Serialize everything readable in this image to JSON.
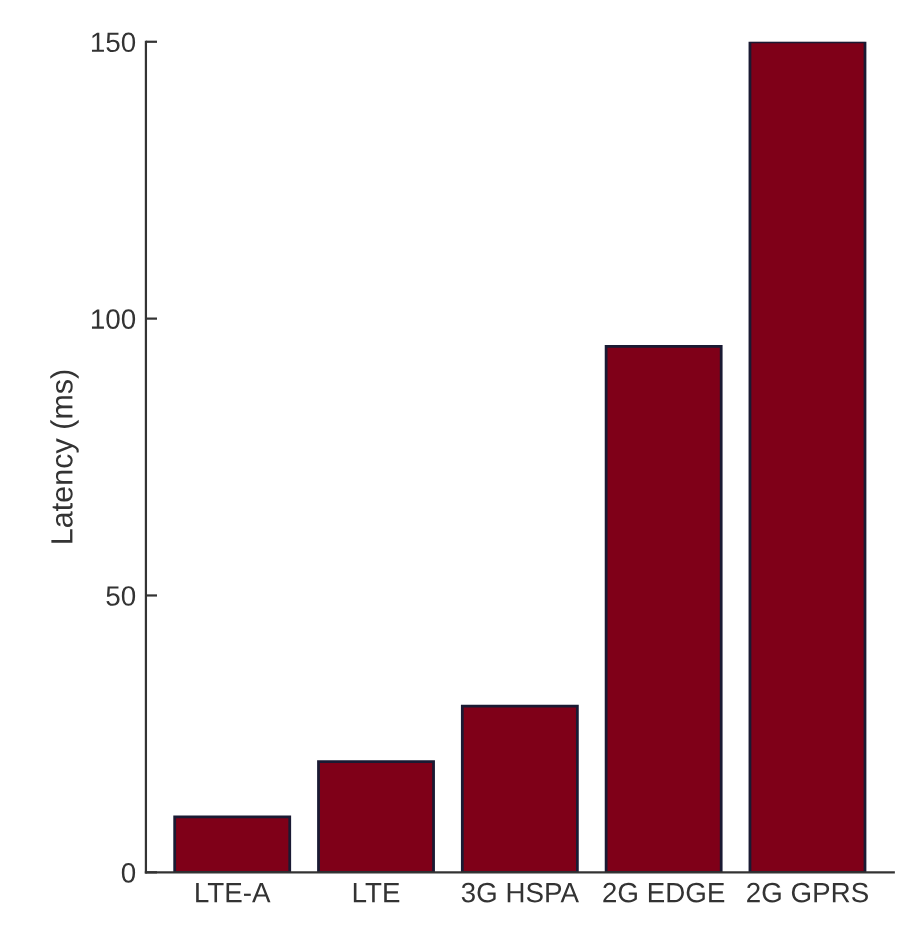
{
  "chart_data": {
    "type": "bar",
    "ylabel": "Latency (ms)",
    "categories": [
      "LTE-A",
      "LTE",
      "3G HSPA",
      "2G EDGE",
      "2G GPRS"
    ],
    "values": [
      10,
      20,
      30,
      95,
      150
    ],
    "color": "#7f0018",
    "ylim": [
      0,
      150
    ],
    "yticks": [
      0,
      50,
      100,
      150
    ],
    "grid": false
  }
}
